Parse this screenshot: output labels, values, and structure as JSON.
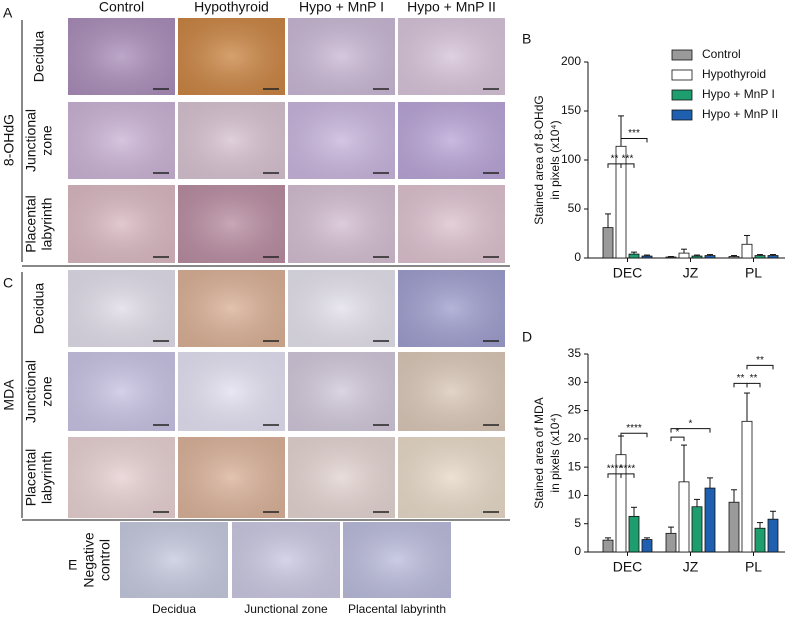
{
  "figure": {
    "panel_labels": [
      "A",
      "B",
      "C",
      "D",
      "E"
    ],
    "columns": [
      "Control",
      "Hypothyroid",
      "Hypo + MnP I",
      "Hypo + MnP II"
    ],
    "groups": [
      "8-OHdG",
      "MDA"
    ],
    "rows": [
      [
        "Decidua"
      ],
      [
        "Junctional",
        "zone"
      ],
      [
        "Placental",
        "labyrinth"
      ]
    ],
    "negative_label": [
      "Negative",
      "control"
    ],
    "negative_captions": [
      "Decidua",
      "Junctional zone",
      "Placental labyrinth"
    ]
  },
  "chart_data": [
    {
      "type": "bar",
      "ylabel": [
        "Stained area of 8-OHdG",
        "in pixels (x10⁴)"
      ],
      "categories": [
        "DEC",
        "JZ",
        "PL"
      ],
      "series": [
        {
          "name": "Control",
          "color": "#9a9a9a",
          "values": [
            31,
            1,
            1.5
          ],
          "errors": [
            14,
            0.5,
            1
          ]
        },
        {
          "name": "Hypothyroid",
          "color": "#ffffff",
          "values": [
            114,
            5,
            14
          ],
          "errors": [
            31,
            4,
            9
          ]
        },
        {
          "name": "Hypo + MnP I",
          "color": "#1e9e6e",
          "values": [
            4,
            2,
            2.5
          ],
          "errors": [
            2,
            1,
            1
          ]
        },
        {
          "name": "Hypo + MnP II",
          "color": "#1f5fb0",
          "values": [
            2,
            2.5,
            2.5
          ],
          "errors": [
            1,
            1,
            1
          ]
        }
      ],
      "ylim": [
        0,
        200
      ],
      "yticks": [
        0,
        50,
        100,
        150,
        200
      ],
      "legend": "top-right",
      "annotations": [
        "**",
        "***",
        "***"
      ]
    },
    {
      "type": "bar",
      "ylabel": [
        "Stained area of MDA",
        "in pixels (x10⁴)"
      ],
      "categories": [
        "DEC",
        "JZ",
        "PL"
      ],
      "series": [
        {
          "name": "Control",
          "color": "#9a9a9a",
          "values": [
            2.1,
            3.3,
            8.8
          ],
          "errors": [
            0.4,
            1.1,
            2.2
          ]
        },
        {
          "name": "Hypothyroid",
          "color": "#ffffff",
          "values": [
            17.2,
            12.4,
            23.1
          ],
          "errors": [
            3.3,
            6.5,
            5
          ]
        },
        {
          "name": "Hypo + MnP I",
          "color": "#1e9e6e",
          "values": [
            6.3,
            8,
            4.2
          ],
          "errors": [
            1.6,
            1.3,
            1
          ]
        },
        {
          "name": "Hypo + MnP II",
          "color": "#1f5fb0",
          "values": [
            2.2,
            11.3,
            5.8
          ],
          "errors": [
            0.3,
            1.8,
            1.4
          ]
        }
      ],
      "ylim": [
        0,
        35
      ],
      "yticks": [
        0,
        5,
        10,
        15,
        20,
        25,
        30,
        35
      ],
      "annotations": [
        "****",
        "****",
        "****",
        "*",
        "*",
        "**",
        "**",
        "**"
      ]
    }
  ]
}
